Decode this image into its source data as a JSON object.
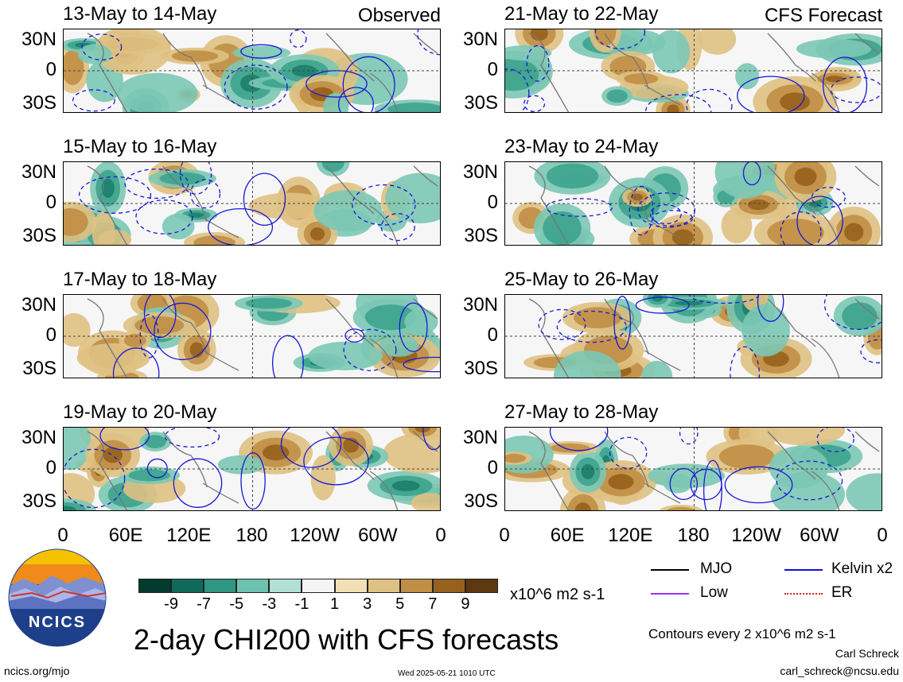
{
  "panels": [
    {
      "title": "13-May to 14-May",
      "tag": "Observed",
      "col": 0,
      "row": 0
    },
    {
      "title": "15-May to 16-May",
      "tag": "",
      "col": 0,
      "row": 1
    },
    {
      "title": "17-May to 18-May",
      "tag": "",
      "col": 0,
      "row": 2
    },
    {
      "title": "19-May to 20-May",
      "tag": "",
      "col": 0,
      "row": 3
    },
    {
      "title": "21-May to 22-May",
      "tag": "CFS Forecast",
      "col": 1,
      "row": 0
    },
    {
      "title": "23-May to 24-May",
      "tag": "",
      "col": 1,
      "row": 1
    },
    {
      "title": "25-May to 26-May",
      "tag": "",
      "col": 1,
      "row": 2
    },
    {
      "title": "27-May to 28-May",
      "tag": "",
      "col": 1,
      "row": 3
    }
  ],
  "lat_labels": [
    "30N",
    "0",
    "30S"
  ],
  "lon_labels": [
    "0",
    "60E",
    "120E",
    "180",
    "120W",
    "60W",
    "0"
  ],
  "colorbar": {
    "ticks": [
      "-9",
      "-7",
      "-5",
      "-3",
      "-1",
      "1",
      "3",
      "5",
      "7",
      "9"
    ],
    "colors": [
      "#053a2e",
      "#0f6a5c",
      "#2e9683",
      "#6cc2ae",
      "#b2e0d4",
      "#f5f5f5",
      "#f2dfb4",
      "#dfc183",
      "#c18e45",
      "#97601c",
      "#5e3810"
    ],
    "units": "x10^6 m2 s-1"
  },
  "legend": {
    "mjo": {
      "label": "MJO",
      "color": "#000000"
    },
    "kelvin": {
      "label": "Kelvin x2",
      "color": "#1010dd"
    },
    "low": {
      "label": "Low",
      "color": "#9b30ff"
    },
    "er": {
      "label": "ER",
      "color": "#dd2020"
    }
  },
  "main_title": "2-day CHI200 with CFS forecasts",
  "contour_note": "Contours every 2 x10^6 m2 s-1",
  "author": "Carl Schreck",
  "email": "carl_schreck@ncsu.edu",
  "website": "ncics.org/mjo",
  "timestamp": "Wed 2025-05-21 1010 UTC",
  "logo_text": "NCICS"
}
